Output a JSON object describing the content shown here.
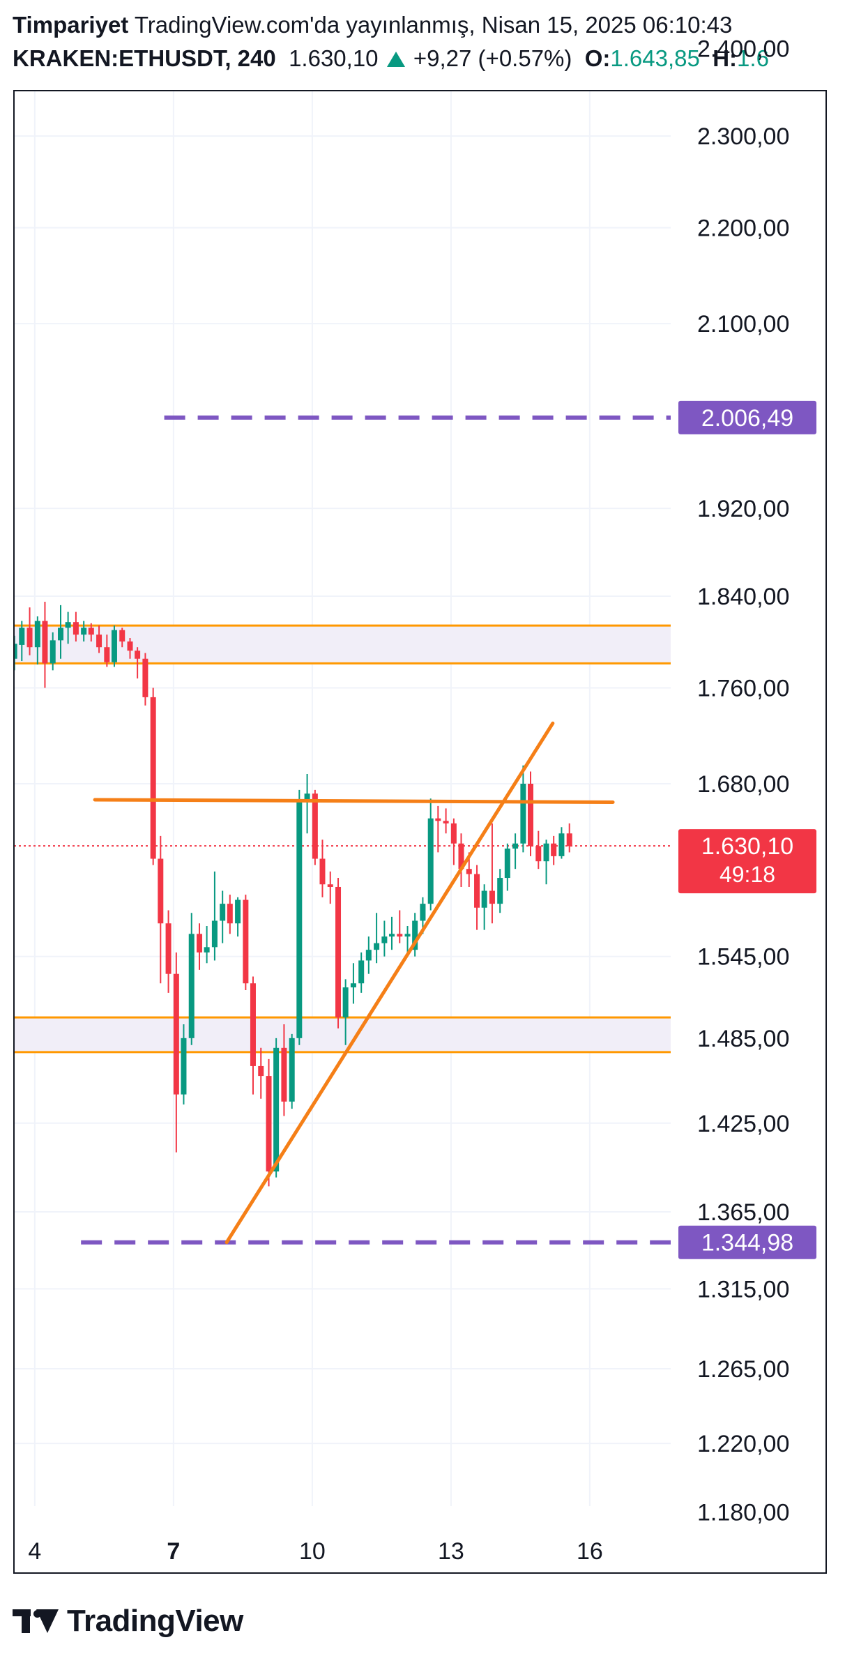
{
  "header": {
    "author": "Timpariyet",
    "published": "TradingView.com'da yayınlanmış, Nisan 15, 2025 06:10:43",
    "symbol": "KRAKEN:ETHUSDT, 240",
    "last": "1.630,10",
    "change": "+9,27 (+0.57%)",
    "o_label": "O:",
    "o_value": "1.643,85",
    "h_label": "H:",
    "h_value": "1.6"
  },
  "footer": {
    "brand": "TradingView"
  },
  "colors": {
    "up": "#089981",
    "down": "#f23645",
    "level_line": "#ff9800",
    "zone_fill": "#f1eef8",
    "target_line": "#7e57c2",
    "trend_line": "#f57f17",
    "grid": "#f0f3fa"
  },
  "chart_data": {
    "type": "candlestick",
    "symbol": "KRAKEN:ETHUSDT",
    "timeframe": "240",
    "y_tick_labels": [
      "2.400,00",
      "2.300,00",
      "2.200,00",
      "2.100,00",
      "1.920,00",
      "1.840,00",
      "1.760,00",
      "1.680,00",
      "1.545,00",
      "1.485,00",
      "1.425,00",
      "1.365,00",
      "1.315,00",
      "1.265,00",
      "1.220,00",
      "1.180,00"
    ],
    "y_ticks": [
      2400,
      2300,
      2200,
      2100,
      1920,
      1840,
      1760,
      1680,
      1545,
      1485,
      1425,
      1365,
      1315,
      1265,
      1220,
      1180
    ],
    "x_tick_labels": [
      "4",
      "7",
      "10",
      "13",
      "16"
    ],
    "x_ticks": [
      4,
      7,
      10,
      13,
      16
    ],
    "x_tick_bold": [
      false,
      true,
      false,
      false,
      false
    ],
    "xlim": [
      3.55,
      17.75
    ],
    "scale": "log",
    "grid": true,
    "last_price": {
      "value": 1630.1,
      "label": "1.630,10",
      "countdown": "49:18"
    },
    "target_levels": [
      {
        "value": 2006.49,
        "label": "2.006,49",
        "x_start": 6.8
      },
      {
        "value": 1344.98,
        "label": "1.344,98",
        "x_start": 5.0
      }
    ],
    "zones": [
      {
        "top": 1814,
        "bottom": 1781
      },
      {
        "top": 1500,
        "bottom": 1475
      }
    ],
    "lines": [
      {
        "kind": "resistance",
        "x1": 5.3,
        "y1": 1667,
        "x2": 16.5,
        "y2": 1665
      },
      {
        "kind": "trendline",
        "x1": 8.15,
        "y1": 1345,
        "x2": 15.2,
        "y2": 1730
      }
    ],
    "candles": [
      {
        "t": 3.56,
        "o": 1785,
        "h": 1805,
        "l": 1775,
        "c": 1798
      },
      {
        "t": 3.72,
        "o": 1797,
        "h": 1818,
        "l": 1783,
        "c": 1812
      },
      {
        "t": 3.89,
        "o": 1812,
        "h": 1830,
        "l": 1788,
        "c": 1795
      },
      {
        "t": 4.06,
        "o": 1795,
        "h": 1822,
        "l": 1780,
        "c": 1818
      },
      {
        "t": 4.22,
        "o": 1818,
        "h": 1835,
        "l": 1760,
        "c": 1781
      },
      {
        "t": 4.39,
        "o": 1781,
        "h": 1808,
        "l": 1775,
        "c": 1801
      },
      {
        "t": 4.56,
        "o": 1801,
        "h": 1832,
        "l": 1785,
        "c": 1812
      },
      {
        "t": 4.72,
        "o": 1812,
        "h": 1826,
        "l": 1798,
        "c": 1817
      },
      {
        "t": 4.89,
        "o": 1817,
        "h": 1826,
        "l": 1800,
        "c": 1806
      },
      {
        "t": 5.06,
        "o": 1806,
        "h": 1818,
        "l": 1800,
        "c": 1812
      },
      {
        "t": 5.22,
        "o": 1812,
        "h": 1816,
        "l": 1800,
        "c": 1806
      },
      {
        "t": 5.39,
        "o": 1806,
        "h": 1814,
        "l": 1790,
        "c": 1795
      },
      {
        "t": 5.56,
        "o": 1795,
        "h": 1806,
        "l": 1778,
        "c": 1782
      },
      {
        "t": 5.72,
        "o": 1782,
        "h": 1814,
        "l": 1778,
        "c": 1810
      },
      {
        "t": 5.89,
        "o": 1810,
        "h": 1812,
        "l": 1795,
        "c": 1800
      },
      {
        "t": 6.06,
        "o": 1800,
        "h": 1803,
        "l": 1785,
        "c": 1792
      },
      {
        "t": 6.22,
        "o": 1792,
        "h": 1795,
        "l": 1768,
        "c": 1785
      },
      {
        "t": 6.39,
        "o": 1785,
        "h": 1790,
        "l": 1745,
        "c": 1752
      },
      {
        "t": 6.56,
        "o": 1752,
        "h": 1760,
        "l": 1615,
        "c": 1620
      },
      {
        "t": 6.72,
        "o": 1620,
        "h": 1638,
        "l": 1525,
        "c": 1570
      },
      {
        "t": 6.89,
        "o": 1570,
        "h": 1580,
        "l": 1518,
        "c": 1532
      },
      {
        "t": 7.06,
        "o": 1532,
        "h": 1548,
        "l": 1405,
        "c": 1445
      },
      {
        "t": 7.22,
        "o": 1445,
        "h": 1495,
        "l": 1438,
        "c": 1485
      },
      {
        "t": 7.39,
        "o": 1485,
        "h": 1578,
        "l": 1480,
        "c": 1562
      },
      {
        "t": 7.56,
        "o": 1562,
        "h": 1570,
        "l": 1535,
        "c": 1548
      },
      {
        "t": 7.72,
        "o": 1548,
        "h": 1568,
        "l": 1540,
        "c": 1552
      },
      {
        "t": 7.89,
        "o": 1552,
        "h": 1610,
        "l": 1542,
        "c": 1572
      },
      {
        "t": 8.06,
        "o": 1572,
        "h": 1595,
        "l": 1555,
        "c": 1585
      },
      {
        "t": 8.22,
        "o": 1585,
        "h": 1592,
        "l": 1562,
        "c": 1570
      },
      {
        "t": 8.39,
        "o": 1570,
        "h": 1590,
        "l": 1560,
        "c": 1588
      },
      {
        "t": 8.56,
        "o": 1588,
        "h": 1592,
        "l": 1520,
        "c": 1525
      },
      {
        "t": 8.72,
        "o": 1525,
        "h": 1530,
        "l": 1445,
        "c": 1465
      },
      {
        "t": 8.89,
        "o": 1465,
        "h": 1478,
        "l": 1442,
        "c": 1458
      },
      {
        "t": 9.06,
        "o": 1458,
        "h": 1470,
        "l": 1382,
        "c": 1392
      },
      {
        "t": 9.22,
        "o": 1392,
        "h": 1485,
        "l": 1388,
        "c": 1478
      },
      {
        "t": 9.39,
        "o": 1478,
        "h": 1495,
        "l": 1430,
        "c": 1440
      },
      {
        "t": 9.56,
        "o": 1440,
        "h": 1488,
        "l": 1435,
        "c": 1485
      },
      {
        "t": 9.72,
        "o": 1485,
        "h": 1675,
        "l": 1480,
        "c": 1665
      },
      {
        "t": 9.89,
        "o": 1665,
        "h": 1688,
        "l": 1640,
        "c": 1672
      },
      {
        "t": 10.06,
        "o": 1672,
        "h": 1675,
        "l": 1615,
        "c": 1620
      },
      {
        "t": 10.22,
        "o": 1620,
        "h": 1635,
        "l": 1590,
        "c": 1600
      },
      {
        "t": 10.39,
        "o": 1600,
        "h": 1610,
        "l": 1585,
        "c": 1598
      },
      {
        "t": 10.56,
        "o": 1598,
        "h": 1605,
        "l": 1492,
        "c": 1500
      },
      {
        "t": 10.72,
        "o": 1500,
        "h": 1528,
        "l": 1480,
        "c": 1522
      },
      {
        "t": 10.89,
        "o": 1522,
        "h": 1540,
        "l": 1510,
        "c": 1525
      },
      {
        "t": 11.06,
        "o": 1525,
        "h": 1548,
        "l": 1518,
        "c": 1542
      },
      {
        "t": 11.22,
        "o": 1542,
        "h": 1560,
        "l": 1532,
        "c": 1550
      },
      {
        "t": 11.39,
        "o": 1550,
        "h": 1578,
        "l": 1540,
        "c": 1555
      },
      {
        "t": 11.56,
        "o": 1555,
        "h": 1572,
        "l": 1545,
        "c": 1560
      },
      {
        "t": 11.72,
        "o": 1560,
        "h": 1575,
        "l": 1550,
        "c": 1562
      },
      {
        "t": 11.89,
        "o": 1562,
        "h": 1580,
        "l": 1555,
        "c": 1560
      },
      {
        "t": 12.06,
        "o": 1560,
        "h": 1568,
        "l": 1545,
        "c": 1562
      },
      {
        "t": 12.22,
        "o": 1550,
        "h": 1578,
        "l": 1545,
        "c": 1572
      },
      {
        "t": 12.39,
        "o": 1572,
        "h": 1590,
        "l": 1562,
        "c": 1585
      },
      {
        "t": 12.56,
        "o": 1585,
        "h": 1668,
        "l": 1580,
        "c": 1652
      },
      {
        "t": 12.72,
        "o": 1652,
        "h": 1662,
        "l": 1625,
        "c": 1650
      },
      {
        "t": 12.89,
        "o": 1650,
        "h": 1660,
        "l": 1640,
        "c": 1648
      },
      {
        "t": 13.06,
        "o": 1648,
        "h": 1652,
        "l": 1615,
        "c": 1632
      },
      {
        "t": 13.22,
        "o": 1632,
        "h": 1640,
        "l": 1598,
        "c": 1612
      },
      {
        "t": 13.39,
        "o": 1612,
        "h": 1625,
        "l": 1598,
        "c": 1608
      },
      {
        "t": 13.56,
        "o": 1608,
        "h": 1615,
        "l": 1565,
        "c": 1582
      },
      {
        "t": 13.72,
        "o": 1582,
        "h": 1600,
        "l": 1565,
        "c": 1595
      },
      {
        "t": 13.89,
        "o": 1595,
        "h": 1648,
        "l": 1570,
        "c": 1585
      },
      {
        "t": 14.06,
        "o": 1585,
        "h": 1612,
        "l": 1578,
        "c": 1605
      },
      {
        "t": 14.22,
        "o": 1605,
        "h": 1632,
        "l": 1595,
        "c": 1628
      },
      {
        "t": 14.39,
        "o": 1628,
        "h": 1640,
        "l": 1612,
        "c": 1632
      },
      {
        "t": 14.56,
        "o": 1632,
        "h": 1695,
        "l": 1625,
        "c": 1680
      },
      {
        "t": 14.72,
        "o": 1680,
        "h": 1690,
        "l": 1622,
        "c": 1630
      },
      {
        "t": 14.89,
        "o": 1630,
        "h": 1642,
        "l": 1612,
        "c": 1618
      },
      {
        "t": 15.06,
        "o": 1618,
        "h": 1635,
        "l": 1600,
        "c": 1632
      },
      {
        "t": 15.22,
        "o": 1632,
        "h": 1638,
        "l": 1615,
        "c": 1622
      },
      {
        "t": 15.39,
        "o": 1622,
        "h": 1645,
        "l": 1620,
        "c": 1640
      },
      {
        "t": 15.56,
        "o": 1640,
        "h": 1648,
        "l": 1625,
        "c": 1630
      }
    ]
  }
}
